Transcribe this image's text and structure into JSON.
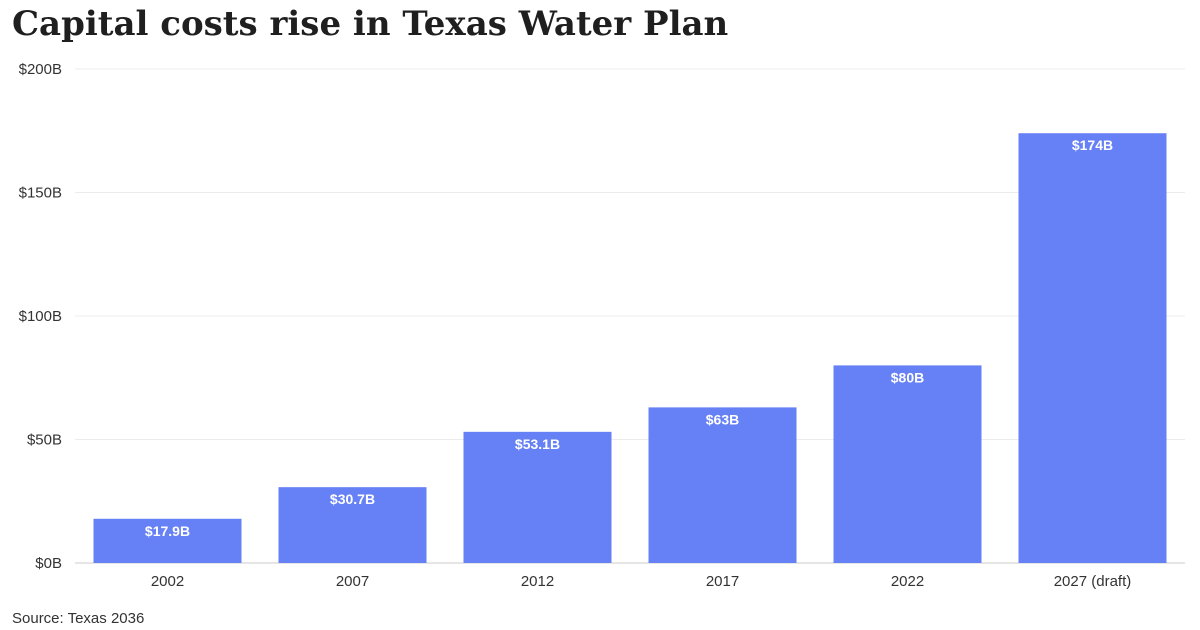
{
  "chart_data": {
    "type": "bar",
    "title": "Capital costs rise in Texas Water Plan",
    "categories": [
      "2002",
      "2007",
      "2012",
      "2017",
      "2022",
      "2027 (draft)"
    ],
    "values": [
      17.9,
      30.7,
      53.1,
      63,
      80,
      174
    ],
    "data_labels": [
      "$17.9B",
      "$30.7B",
      "$53.1B",
      "$63B",
      "$80B",
      "$174B"
    ],
    "yticks": [
      0,
      50,
      100,
      150,
      200
    ],
    "ytick_labels": [
      "$0B",
      "$50B",
      "$100B",
      "$150B",
      "$200B"
    ],
    "ylim": [
      0,
      200
    ],
    "grid": true,
    "bar_color": "#6680f5",
    "source": "Source: Texas 2036"
  }
}
